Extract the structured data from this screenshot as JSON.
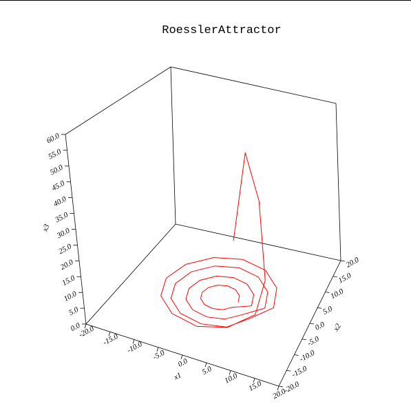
{
  "chart_data": {
    "type": "line3d",
    "title": "RoesslerAttractor",
    "xlabel": "x1",
    "ylabel": "x2",
    "zlabel": "x3",
    "color": "#ff0000",
    "xlim": [
      -20,
      20
    ],
    "ylim": [
      -20,
      20
    ],
    "zlim": [
      0,
      60
    ],
    "xticks": [
      {
        "value": -20,
        "label": "-20.0"
      },
      {
        "value": -15,
        "label": "-15.0"
      },
      {
        "value": -10,
        "label": "-10.0"
      },
      {
        "value": -5,
        "label": "-5.0"
      },
      {
        "value": 0,
        "label": "0.0"
      },
      {
        "value": 5,
        "label": "5.0"
      },
      {
        "value": 10,
        "label": "10.0"
      },
      {
        "value": 15,
        "label": "15.0"
      },
      {
        "value": 20,
        "label": "20.0"
      }
    ],
    "yticks": [
      {
        "value": -20,
        "label": "-20.0"
      },
      {
        "value": -15,
        "label": "-15.0"
      },
      {
        "value": -10,
        "label": "-10.0"
      },
      {
        "value": -5,
        "label": "-5.0"
      },
      {
        "value": 0,
        "label": "0.0"
      },
      {
        "value": 5,
        "label": "5.0"
      },
      {
        "value": 10,
        "label": "10.0"
      },
      {
        "value": 15,
        "label": "15.0"
      },
      {
        "value": 20,
        "label": "20.0"
      }
    ],
    "zticks": [
      {
        "value": 0,
        "label": "0.0"
      },
      {
        "value": 5,
        "label": "5.0"
      },
      {
        "value": 10,
        "label": "10.0"
      },
      {
        "value": 15,
        "label": "15.0"
      },
      {
        "value": 20,
        "label": "20.0"
      },
      {
        "value": 25,
        "label": "25.0"
      },
      {
        "value": 30,
        "label": "30.0"
      },
      {
        "value": 35,
        "label": "35.0"
      },
      {
        "value": 40,
        "label": "40.0"
      },
      {
        "value": 45,
        "label": "45.0"
      },
      {
        "value": 50,
        "label": "50.0"
      },
      {
        "value": 55,
        "label": "55.0"
      },
      {
        "value": 60,
        "label": "60.0"
      }
    ],
    "x": [
      4,
      3.5,
      2,
      0,
      -2,
      -3.5,
      -4,
      -3.5,
      -2,
      0,
      2,
      3.5,
      7,
      6.1,
      3.5,
      0,
      -3.5,
      -6.1,
      -7,
      -6.1,
      -3.5,
      0,
      3.5,
      6.1,
      10,
      8.7,
      5,
      0,
      -5,
      -8.7,
      -10,
      -8.7,
      -5,
      0,
      5,
      8.7,
      12,
      10.4,
      6,
      0,
      -6,
      -10.4,
      -12,
      -10.4,
      -6,
      0,
      6,
      10.4,
      11,
      9,
      5,
      1
    ],
    "y": [
      0,
      2,
      3.5,
      4,
      3.5,
      2,
      0,
      -2,
      -3.5,
      -4,
      -3.5,
      -2,
      0,
      3.5,
      6.1,
      7,
      6.1,
      3.5,
      0,
      -3.5,
      -6.1,
      -7,
      -6.1,
      -3.5,
      0,
      5,
      8.7,
      10,
      8.7,
      5,
      0,
      -5,
      -8.7,
      -10,
      -8.7,
      -5,
      0,
      6,
      10.4,
      12,
      10.4,
      6,
      0,
      -6,
      -10.4,
      -12,
      -10.4,
      -6,
      -1,
      3,
      6,
      6
    ],
    "z": [
      0.5,
      0.5,
      0.5,
      0.5,
      0.5,
      0.5,
      0.5,
      0.5,
      0.5,
      0.5,
      0.5,
      0.5,
      0.5,
      0.5,
      0.5,
      0.5,
      0.5,
      0.5,
      0.5,
      0.5,
      0.5,
      0.5,
      0.5,
      0.5,
      1,
      1,
      1,
      1,
      1,
      1,
      1,
      1,
      1,
      1,
      1,
      2,
      2,
      2,
      2,
      2,
      2,
      2,
      2,
      2,
      2,
      2,
      3,
      5,
      12,
      35,
      48,
      15
    ]
  }
}
